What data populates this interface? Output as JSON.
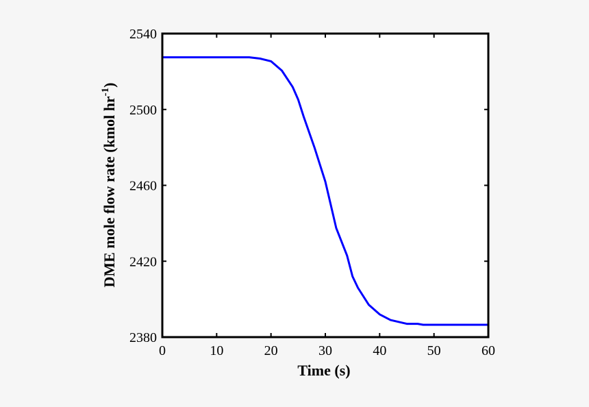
{
  "chart_data": {
    "type": "line",
    "title": "",
    "xlabel": "Time (s)",
    "ylabel": "DME mole flow rate (kmol hr⁻¹)",
    "ylabel_main": "DME mole flow rate (kmol hr",
    "ylabel_sup": "-1",
    "ylabel_close": ")",
    "xlim": [
      0,
      60
    ],
    "ylim": [
      2380,
      2540
    ],
    "xticks": [
      0,
      10,
      20,
      30,
      40,
      50,
      60
    ],
    "yticks": [
      2380,
      2420,
      2460,
      2500,
      2540
    ],
    "grid": false,
    "legend": null,
    "series": [
      {
        "name": "DME mole flow rate",
        "color": "#0000ff",
        "x": [
          0,
          16,
          18,
          20,
          22,
          24,
          25,
          26,
          28,
          30,
          32,
          34,
          35,
          36,
          38,
          40,
          42,
          45,
          47,
          48,
          60
        ],
        "values": [
          2527.5,
          2527.5,
          2526.8,
          2525.4,
          2520.5,
          2511.8,
          2505.3,
          2496.3,
          2480,
          2462,
          2437.5,
          2423,
          2412,
          2406,
          2397,
          2392,
          2389,
          2387,
          2387,
          2386.5,
          2386.5
        ]
      }
    ]
  }
}
